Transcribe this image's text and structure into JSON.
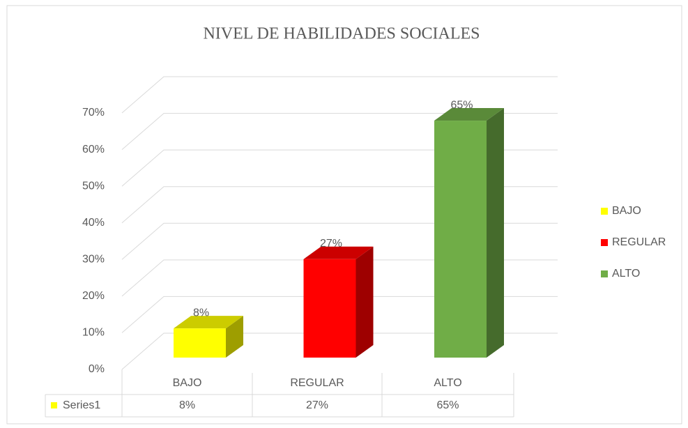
{
  "chart_data": {
    "type": "bar3d",
    "title": "NIVEL  DE HABILIDADES  SOCIALES",
    "categories": [
      "BAJO",
      "REGULAR",
      "ALTO"
    ],
    "series": [
      {
        "name": "Series1",
        "values": [
          8,
          27,
          65
        ],
        "value_labels": [
          "8%",
          "27%",
          "65%"
        ],
        "colors": [
          "#ffff00",
          "#ff0000",
          "#70ad47"
        ]
      }
    ],
    "ylim": [
      0,
      70
    ],
    "yticks": [
      {
        "value": 0,
        "label": "0%"
      },
      {
        "value": 10,
        "label": "10%"
      },
      {
        "value": 20,
        "label": "20%"
      },
      {
        "value": 30,
        "label": "30%"
      },
      {
        "value": 40,
        "label": "40%"
      },
      {
        "value": 50,
        "label": "50%"
      },
      {
        "value": 60,
        "label": "60%"
      },
      {
        "value": 70,
        "label": "70%"
      }
    ],
    "grid": true,
    "legend": "right",
    "data_table": true
  }
}
